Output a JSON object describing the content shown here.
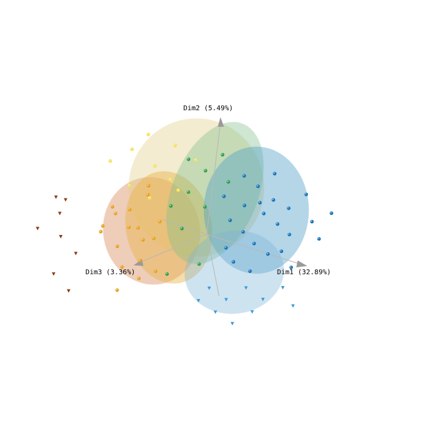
{
  "chart_data": {
    "type": "scatter",
    "projection": "3d",
    "axes": {
      "x_label": "Dim1 (32.89%)",
      "y_label": "Dim2 (5.49%)",
      "z_label": "Dim3 (3.36%)"
    },
    "grid": false,
    "legend": "none",
    "ellipsoids": [
      {
        "color": "#d88a5a"
      },
      {
        "color": "#e2cf86"
      },
      {
        "color": "#e9b44a"
      },
      {
        "color": "#7fbf8a"
      },
      {
        "color": "#4e9fc7"
      },
      {
        "color": "#7fb6d8"
      }
    ],
    "groups": [
      {
        "color": "#8b3a12",
        "marker": "cone",
        "points": [
          [
            -2.8,
            0.6,
            2.2
          ],
          [
            -3.0,
            -0.3,
            1.8
          ],
          [
            -2.6,
            -1.1,
            2.4
          ],
          [
            -2.2,
            1.4,
            2.8
          ],
          [
            -3.1,
            0.2,
            2.6
          ],
          [
            -2.4,
            -0.6,
            1.9
          ],
          [
            -2.9,
            1.1,
            2.3
          ],
          [
            -2.0,
            -1.4,
            2.5
          ]
        ]
      },
      {
        "color": "#f2e35a",
        "marker": "sphere",
        "points": [
          [
            -1.8,
            2.4,
            1.0
          ],
          [
            -1.2,
            2.0,
            0.8
          ],
          [
            -0.9,
            2.6,
            0.5
          ],
          [
            -1.5,
            1.5,
            1.3
          ],
          [
            -0.6,
            1.8,
            0.9
          ],
          [
            -2.1,
            2.1,
            1.4
          ],
          [
            -0.3,
            2.3,
            0.4
          ],
          [
            -1.0,
            1.2,
            1.1
          ],
          [
            -1.6,
            2.8,
            0.7
          ],
          [
            -0.4,
            1.5,
            0.8
          ]
        ]
      },
      {
        "color": "#e6a21c",
        "marker": "sphere",
        "points": [
          [
            -1.9,
            0.5,
            1.2
          ],
          [
            -1.6,
            0.1,
            1.0
          ],
          [
            -1.4,
            0.8,
            1.3
          ],
          [
            -1.2,
            -0.2,
            0.9
          ],
          [
            -1.8,
            -0.5,
            1.1
          ],
          [
            -1.0,
            0.4,
            1.4
          ],
          [
            -1.5,
            -1.0,
            1.2
          ],
          [
            -0.8,
            0.0,
            1.0
          ],
          [
            -2.0,
            0.2,
            1.5
          ],
          [
            -1.3,
            1.1,
            0.8
          ],
          [
            -0.9,
            -0.6,
            1.3
          ],
          [
            -1.7,
            0.9,
            1.6
          ],
          [
            -1.1,
            -1.3,
            1.0
          ],
          [
            -0.6,
            0.6,
            1.1
          ],
          [
            -1.4,
            -1.6,
            1.4
          ],
          [
            -2.2,
            -0.1,
            1.3
          ],
          [
            -0.7,
            -1.0,
            0.9
          ],
          [
            -1.0,
            1.6,
            1.2
          ]
        ]
      },
      {
        "color": "#2e9e4a",
        "marker": "sphere",
        "points": [
          [
            -0.6,
            2.2,
            0.3
          ],
          [
            -0.2,
            1.9,
            0.1
          ],
          [
            0.1,
            2.4,
            -0.1
          ],
          [
            -0.4,
            1.3,
            0.4
          ],
          [
            0.3,
            1.6,
            -0.2
          ],
          [
            -0.8,
            0.8,
            0.5
          ],
          [
            0.0,
            0.9,
            0.2
          ],
          [
            -0.3,
            0.3,
            0.6
          ],
          [
            0.2,
            -0.7,
            0.4
          ],
          [
            -0.5,
            -1.1,
            0.7
          ]
        ]
      },
      {
        "color": "#1773b8",
        "marker": "sphere",
        "points": [
          [
            0.6,
            1.8,
            -0.4
          ],
          [
            0.9,
            1.5,
            -0.6
          ],
          [
            1.2,
            1.9,
            -0.8
          ],
          [
            1.5,
            1.3,
            -0.5
          ],
          [
            0.8,
            1.0,
            -0.3
          ],
          [
            1.1,
            0.7,
            -0.7
          ],
          [
            1.4,
            0.4,
            -0.9
          ],
          [
            0.5,
            0.5,
            -0.2
          ],
          [
            0.7,
            0.1,
            -0.5
          ],
          [
            1.0,
            -0.2,
            -0.6
          ],
          [
            1.3,
            -0.5,
            -0.8
          ],
          [
            0.4,
            -0.4,
            -0.3
          ],
          [
            0.6,
            -0.8,
            -0.4
          ],
          [
            0.9,
            -1.1,
            -0.7
          ],
          [
            1.6,
            0.9,
            -1.0
          ],
          [
            1.8,
            0.2,
            -0.9
          ],
          [
            2.0,
            1.4,
            -1.1
          ],
          [
            2.2,
            0.6,
            -1.2
          ],
          [
            1.7,
            -0.3,
            -0.8
          ],
          [
            2.4,
            0.1,
            -1.3
          ],
          [
            0.3,
            1.2,
            -0.1
          ],
          [
            1.9,
            -0.8,
            -1.0
          ],
          [
            2.6,
            0.9,
            -1.4
          ],
          [
            1.1,
            1.1,
            -0.5
          ]
        ]
      },
      {
        "color": "#3a9ad9",
        "marker": "cone",
        "points": [
          [
            0.2,
            -1.6,
            -0.1
          ],
          [
            0.6,
            -1.9,
            -0.3
          ],
          [
            1.0,
            -1.5,
            -0.5
          ],
          [
            1.4,
            -1.8,
            -0.7
          ],
          [
            0.4,
            -2.3,
            -0.2
          ],
          [
            1.8,
            -1.4,
            -0.9
          ],
          [
            0.8,
            -2.6,
            -0.4
          ],
          [
            2.1,
            -1.9,
            -1.0
          ],
          [
            1.2,
            -2.2,
            -0.6
          ],
          [
            0.0,
            -2.0,
            0.0
          ]
        ]
      }
    ]
  }
}
